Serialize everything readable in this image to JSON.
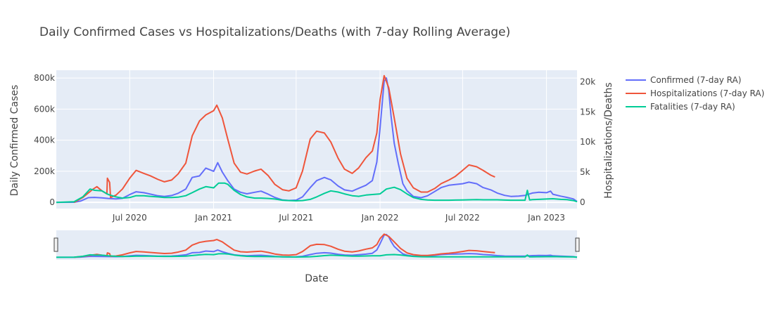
{
  "chart_data": {
    "type": "line",
    "title": "Daily Confirmed Cases vs Hospitalizations/Deaths (with 7-day Rolling Average)",
    "xlabel": "Date",
    "ylabel": "Daily Confirmed Cases",
    "y2label": "Hospitalizations/Deaths",
    "xlim": [
      "2020-01-22",
      "2023-03-09"
    ],
    "ylim": [
      -40000,
      850000
    ],
    "y2lim": [
      -1030,
      21900
    ],
    "x_ticks": [
      {
        "date": "2020-07-01",
        "label": "Jul 2020"
      },
      {
        "date": "2021-01-01",
        "label": "Jan 2021"
      },
      {
        "date": "2021-07-01",
        "label": "Jul 2021"
      },
      {
        "date": "2022-01-01",
        "label": "Jan 2022"
      },
      {
        "date": "2022-07-01",
        "label": "Jul 2022"
      },
      {
        "date": "2023-01-01",
        "label": "Jan 2023"
      }
    ],
    "y_ticks": [
      {
        "value": 0,
        "label": "0"
      },
      {
        "value": 200000,
        "label": "200k"
      },
      {
        "value": 400000,
        "label": "400k"
      },
      {
        "value": 600000,
        "label": "600k"
      },
      {
        "value": 800000,
        "label": "800k"
      }
    ],
    "y2_ticks": [
      {
        "value": 0,
        "label": "0"
      },
      {
        "value": 5000,
        "label": "5k"
      },
      {
        "value": 10000,
        "label": "10k"
      },
      {
        "value": 15000,
        "label": "15k"
      },
      {
        "value": 20000,
        "label": "20k"
      }
    ],
    "legend_position": "top-right",
    "grid": true,
    "range_slider": true,
    "series": [
      {
        "name": "Confirmed (7-day RA)",
        "axis": "y",
        "color": "#636efa",
        "points": [
          [
            "2020-01-22",
            0
          ],
          [
            "2020-03-01",
            500
          ],
          [
            "2020-03-15",
            8000
          ],
          [
            "2020-04-01",
            30000
          ],
          [
            "2020-04-15",
            32000
          ],
          [
            "2020-05-01",
            29000
          ],
          [
            "2020-05-15",
            25000
          ],
          [
            "2020-06-01",
            22000
          ],
          [
            "2020-06-15",
            26000
          ],
          [
            "2020-07-01",
            50000
          ],
          [
            "2020-07-15",
            68000
          ],
          [
            "2020-08-01",
            62000
          ],
          [
            "2020-08-15",
            53000
          ],
          [
            "2020-09-01",
            42000
          ],
          [
            "2020-09-15",
            38000
          ],
          [
            "2020-10-01",
            44000
          ],
          [
            "2020-10-15",
            58000
          ],
          [
            "2020-11-01",
            85000
          ],
          [
            "2020-11-15",
            160000
          ],
          [
            "2020-12-01",
            170000
          ],
          [
            "2020-12-15",
            220000
          ],
          [
            "2021-01-01",
            200000
          ],
          [
            "2021-01-10",
            255000
          ],
          [
            "2021-01-20",
            195000
          ],
          [
            "2021-02-01",
            140000
          ],
          [
            "2021-02-15",
            85000
          ],
          [
            "2021-03-01",
            65000
          ],
          [
            "2021-03-15",
            55000
          ],
          [
            "2021-04-01",
            65000
          ],
          [
            "2021-04-15",
            72000
          ],
          [
            "2021-05-01",
            52000
          ],
          [
            "2021-05-15",
            32000
          ],
          [
            "2021-06-01",
            15000
          ],
          [
            "2021-06-15",
            12000
          ],
          [
            "2021-07-01",
            14000
          ],
          [
            "2021-07-15",
            35000
          ],
          [
            "2021-08-01",
            95000
          ],
          [
            "2021-08-15",
            140000
          ],
          [
            "2021-09-01",
            160000
          ],
          [
            "2021-09-10",
            150000
          ],
          [
            "2021-09-15",
            145000
          ],
          [
            "2021-10-01",
            105000
          ],
          [
            "2021-10-15",
            80000
          ],
          [
            "2021-11-01",
            72000
          ],
          [
            "2021-11-15",
            90000
          ],
          [
            "2021-12-01",
            110000
          ],
          [
            "2021-12-15",
            140000
          ],
          [
            "2021-12-25",
            260000
          ],
          [
            "2022-01-01",
            480000
          ],
          [
            "2022-01-10",
            780000
          ],
          [
            "2022-01-15",
            800000
          ],
          [
            "2022-01-20",
            720000
          ],
          [
            "2022-01-25",
            560000
          ],
          [
            "2022-02-01",
            380000
          ],
          [
            "2022-02-10",
            250000
          ],
          [
            "2022-02-20",
            120000
          ],
          [
            "2022-03-01",
            75000
          ],
          [
            "2022-03-15",
            38000
          ],
          [
            "2022-04-01",
            30000
          ],
          [
            "2022-04-15",
            42000
          ],
          [
            "2022-05-01",
            70000
          ],
          [
            "2022-05-15",
            95000
          ],
          [
            "2022-06-01",
            110000
          ],
          [
            "2022-06-15",
            115000
          ],
          [
            "2022-07-01",
            120000
          ],
          [
            "2022-07-15",
            130000
          ],
          [
            "2022-08-01",
            120000
          ],
          [
            "2022-08-15",
            95000
          ],
          [
            "2022-09-01",
            80000
          ],
          [
            "2022-09-15",
            60000
          ],
          [
            "2022-10-01",
            45000
          ],
          [
            "2022-10-15",
            38000
          ],
          [
            "2022-11-01",
            40000
          ],
          [
            "2022-11-15",
            45000
          ],
          [
            "2022-12-01",
            60000
          ],
          [
            "2022-12-15",
            65000
          ],
          [
            "2023-01-01",
            62000
          ],
          [
            "2023-01-10",
            72000
          ],
          [
            "2023-01-15",
            52000
          ],
          [
            "2023-02-01",
            40000
          ],
          [
            "2023-02-15",
            32000
          ],
          [
            "2023-03-01",
            22000
          ],
          [
            "2023-03-09",
            5000
          ]
        ]
      },
      {
        "name": "Hospitalizations (7-day RA)",
        "axis": "y2",
        "color": "#ef553b",
        "points": [
          [
            "2020-03-01",
            0
          ],
          [
            "2020-03-20",
            800
          ],
          [
            "2020-04-10",
            2100
          ],
          [
            "2020-04-20",
            2600
          ],
          [
            "2020-05-01",
            1900
          ],
          [
            "2020-05-12",
            1400
          ],
          [
            "2020-05-13",
            4000
          ],
          [
            "2020-05-18",
            3300
          ],
          [
            "2020-05-20",
            800
          ],
          [
            "2020-06-01",
            1200
          ],
          [
            "2020-06-15",
            2200
          ],
          [
            "2020-07-01",
            4000
          ],
          [
            "2020-07-15",
            5300
          ],
          [
            "2020-08-01",
            4800
          ],
          [
            "2020-08-15",
            4400
          ],
          [
            "2020-09-01",
            3800
          ],
          [
            "2020-09-15",
            3400
          ],
          [
            "2020-10-01",
            3700
          ],
          [
            "2020-10-15",
            4700
          ],
          [
            "2020-11-01",
            6500
          ],
          [
            "2020-11-15",
            11000
          ],
          [
            "2020-12-01",
            13500
          ],
          [
            "2020-12-15",
            14500
          ],
          [
            "2021-01-01",
            15200
          ],
          [
            "2021-01-08",
            16100
          ],
          [
            "2021-01-20",
            14000
          ],
          [
            "2021-02-01",
            10500
          ],
          [
            "2021-02-15",
            6500
          ],
          [
            "2021-03-01",
            5000
          ],
          [
            "2021-03-15",
            4700
          ],
          [
            "2021-04-01",
            5200
          ],
          [
            "2021-04-15",
            5500
          ],
          [
            "2021-05-01",
            4400
          ],
          [
            "2021-05-15",
            3000
          ],
          [
            "2021-06-01",
            2100
          ],
          [
            "2021-06-15",
            1900
          ],
          [
            "2021-07-01",
            2400
          ],
          [
            "2021-07-15",
            5200
          ],
          [
            "2021-08-01",
            10500
          ],
          [
            "2021-08-15",
            11800
          ],
          [
            "2021-09-01",
            11500
          ],
          [
            "2021-09-15",
            10000
          ],
          [
            "2021-10-01",
            7300
          ],
          [
            "2021-10-15",
            5500
          ],
          [
            "2021-11-01",
            4800
          ],
          [
            "2021-11-15",
            5700
          ],
          [
            "2021-12-01",
            7400
          ],
          [
            "2021-12-15",
            8500
          ],
          [
            "2021-12-25",
            11500
          ],
          [
            "2022-01-01",
            17000
          ],
          [
            "2022-01-10",
            21000
          ],
          [
            "2022-01-20",
            19000
          ],
          [
            "2022-02-01",
            14000
          ],
          [
            "2022-02-15",
            8000
          ],
          [
            "2022-03-01",
            4000
          ],
          [
            "2022-03-15",
            2400
          ],
          [
            "2022-04-01",
            1700
          ],
          [
            "2022-04-15",
            1700
          ],
          [
            "2022-05-01",
            2300
          ],
          [
            "2022-05-15",
            3100
          ],
          [
            "2022-06-01",
            3700
          ],
          [
            "2022-06-15",
            4300
          ],
          [
            "2022-07-01",
            5300
          ],
          [
            "2022-07-15",
            6200
          ],
          [
            "2022-08-01",
            5900
          ],
          [
            "2022-08-15",
            5300
          ],
          [
            "2022-09-01",
            4500
          ],
          [
            "2022-09-10",
            4200
          ]
        ]
      },
      {
        "name": "Fatalities (7-day RA)",
        "axis": "y2",
        "color": "#00cc96",
        "points": [
          [
            "2020-01-22",
            0
          ],
          [
            "2020-03-01",
            100
          ],
          [
            "2020-03-20",
            900
          ],
          [
            "2020-04-05",
            2200
          ],
          [
            "2020-04-15",
            2000
          ],
          [
            "2020-05-01",
            1900
          ],
          [
            "2020-05-15",
            1300
          ],
          [
            "2020-06-01",
            900
          ],
          [
            "2020-06-15",
            700
          ],
          [
            "2020-07-01",
            800
          ],
          [
            "2020-07-15",
            1100
          ],
          [
            "2020-08-01",
            1100
          ],
          [
            "2020-08-15",
            1000
          ],
          [
            "2020-09-01",
            900
          ],
          [
            "2020-09-15",
            800
          ],
          [
            "2020-10-01",
            800
          ],
          [
            "2020-10-15",
            850
          ],
          [
            "2020-11-01",
            1100
          ],
          [
            "2020-11-15",
            1600
          ],
          [
            "2020-12-01",
            2200
          ],
          [
            "2020-12-15",
            2600
          ],
          [
            "2021-01-01",
            2400
          ],
          [
            "2021-01-12",
            3200
          ],
          [
            "2021-01-25",
            3200
          ],
          [
            "2021-02-01",
            3000
          ],
          [
            "2021-02-15",
            2000
          ],
          [
            "2021-03-01",
            1300
          ],
          [
            "2021-03-15",
            900
          ],
          [
            "2021-04-01",
            700
          ],
          [
            "2021-04-15",
            700
          ],
          [
            "2021-05-01",
            650
          ],
          [
            "2021-05-15",
            550
          ],
          [
            "2021-06-01",
            350
          ],
          [
            "2021-06-15",
            300
          ],
          [
            "2021-07-01",
            250
          ],
          [
            "2021-07-15",
            300
          ],
          [
            "2021-08-01",
            500
          ],
          [
            "2021-08-15",
            900
          ],
          [
            "2021-09-01",
            1500
          ],
          [
            "2021-09-15",
            1900
          ],
          [
            "2021-10-01",
            1700
          ],
          [
            "2021-10-15",
            1400
          ],
          [
            "2021-11-01",
            1100
          ],
          [
            "2021-11-15",
            1000
          ],
          [
            "2021-12-01",
            1200
          ],
          [
            "2021-12-15",
            1300
          ],
          [
            "2022-01-01",
            1400
          ],
          [
            "2022-01-15",
            2200
          ],
          [
            "2022-02-01",
            2500
          ],
          [
            "2022-02-15",
            2100
          ],
          [
            "2022-03-01",
            1400
          ],
          [
            "2022-03-15",
            800
          ],
          [
            "2022-04-01",
            500
          ],
          [
            "2022-04-15",
            400
          ],
          [
            "2022-05-01",
            350
          ],
          [
            "2022-05-15",
            350
          ],
          [
            "2022-06-01",
            350
          ],
          [
            "2022-06-15",
            380
          ],
          [
            "2022-07-01",
            400
          ],
          [
            "2022-07-15",
            420
          ],
          [
            "2022-08-01",
            450
          ],
          [
            "2022-08-15",
            430
          ],
          [
            "2022-09-01",
            420
          ],
          [
            "2022-09-15",
            420
          ],
          [
            "2022-10-01",
            380
          ],
          [
            "2022-10-15",
            360
          ],
          [
            "2022-11-01",
            350
          ],
          [
            "2022-11-15",
            350
          ],
          [
            "2022-11-20",
            2000
          ],
          [
            "2022-11-25",
            400
          ],
          [
            "2022-12-01",
            450
          ],
          [
            "2022-12-15",
            500
          ],
          [
            "2023-01-01",
            550
          ],
          [
            "2023-01-15",
            600
          ],
          [
            "2023-02-01",
            500
          ],
          [
            "2023-02-15",
            450
          ],
          [
            "2023-03-01",
            300
          ],
          [
            "2023-03-09",
            100
          ]
        ]
      }
    ]
  }
}
